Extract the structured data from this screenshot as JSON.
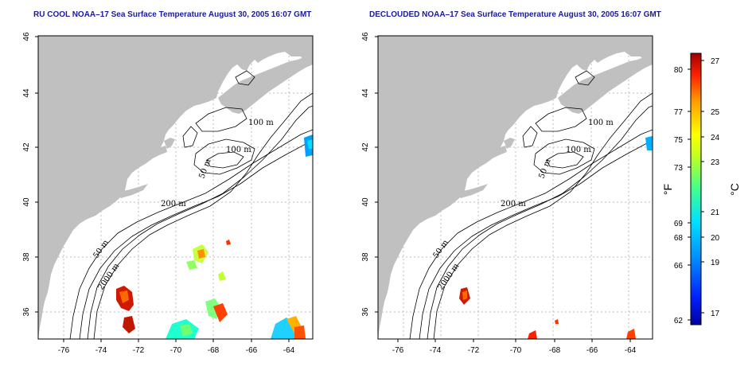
{
  "left_map": {
    "title": "RU COOL NOAA–17 Sea Surface Temperature August 30, 2005 16:07 GMT"
  },
  "right_map": {
    "title": "DECLOUDED NOAA–17 Sea Surface Temperature August 30, 2005 16:07 GMT"
  },
  "axes": {
    "x_ticks": [
      "-76",
      "-74",
      "-72",
      "-70",
      "-68",
      "-66",
      "-64"
    ],
    "y_ticks": [
      "46",
      "44",
      "42",
      "40",
      "38",
      "36"
    ]
  },
  "contours": {
    "c100_a": "100 m",
    "c100_b": "100 m",
    "c50_a": "50 m",
    "c200": "200 m",
    "c50_b": "50 m",
    "c2000": "2000 m"
  },
  "colorbar": {
    "f_label": "°F",
    "c_label": "°C",
    "f_ticks": [
      "80",
      "77",
      "75",
      "73",
      "69",
      "68",
      "66",
      "62"
    ],
    "c_ticks": [
      "27",
      "25",
      "24",
      "23",
      "21",
      "20",
      "19",
      "17"
    ]
  },
  "colors": {
    "land": "#c0c0c0",
    "ocean": "#ffffff",
    "title": "#1a1a9c",
    "grid": "#bcbcbc"
  }
}
